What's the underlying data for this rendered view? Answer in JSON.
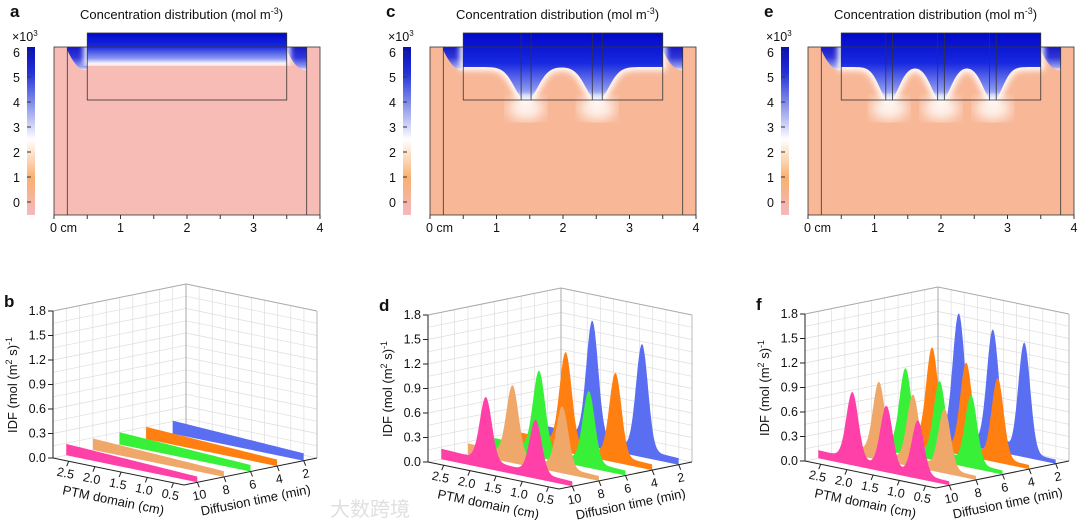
{
  "figure_watermark": "大数跨境",
  "chart_data": [
    {
      "panel": "a",
      "type": "heatmap",
      "title": "Concentration distribution (mol m",
      "title_sup": "-3",
      "title_end": ")",
      "colorbar": {
        "multiplier": "×10",
        "multiplier_sup": "3",
        "ticks": [
          "6",
          "5",
          "4",
          "3",
          "2",
          "1",
          "0"
        ],
        "range": [
          -0.6,
          6.2
        ]
      },
      "xticks": [
        "0 cm",
        "1",
        "2",
        "3",
        "4"
      ],
      "xlim": [
        0,
        4
      ],
      "background": "#f8bcb6"
    },
    {
      "panel": "c",
      "type": "heatmap",
      "title": "Concentration distribution (mol m",
      "title_sup": "-3",
      "title_end": ")",
      "colorbar": {
        "multiplier": "×10",
        "multiplier_sup": "3",
        "ticks": [
          "6",
          "5",
          "4",
          "3",
          "2",
          "1",
          "0"
        ],
        "range": [
          -0.6,
          6.2
        ]
      },
      "xticks": [
        "0 cm",
        "1",
        "2",
        "3",
        "4"
      ],
      "xlim": [
        0,
        4
      ],
      "background": "#f8b898"
    },
    {
      "panel": "e",
      "type": "heatmap",
      "title": "Concentration distribution (mol m",
      "title_sup": "-3",
      "title_end": ")",
      "colorbar": {
        "multiplier": "×10",
        "multiplier_sup": "3",
        "ticks": [
          "6",
          "5",
          "4",
          "3",
          "2",
          "1",
          "0"
        ],
        "range": [
          -0.6,
          6.2
        ]
      },
      "xticks": [
        "0 cm",
        "1",
        "2",
        "3",
        "4"
      ],
      "xlim": [
        0,
        4
      ],
      "background": "#f8b898"
    },
    {
      "panel": "b",
      "type": "area",
      "zlabel": {
        "a": "IDF (mol (m",
        "sup1": "2",
        "b": " s)",
        "sup2": "-1"
      },
      "xlabel": "PTM domain (cm)",
      "ylabel": "Diffusion time (min)",
      "zticks": [
        "0.0",
        "0.3",
        "0.6",
        "0.9",
        "1.2",
        "1.5",
        "1.8"
      ],
      "zlim": [
        0,
        1.8
      ],
      "xticks": [
        "2.5",
        "2.0",
        "1.5",
        "1.0",
        "0.5"
      ],
      "yticks": [
        "10",
        "8",
        "6",
        "4",
        "2"
      ],
      "series": [
        {
          "time": 10,
          "color": "#ff40a8",
          "baseline": [
            0.14,
            0.07
          ],
          "peaks": []
        },
        {
          "time": 8,
          "color": "#f0a86a",
          "baseline": [
            0.14,
            0.07
          ],
          "peaks": []
        },
        {
          "time": 6,
          "color": "#38f038",
          "baseline": [
            0.15,
            0.08
          ],
          "peaks": []
        },
        {
          "time": 4,
          "color": "#ff7f10",
          "baseline": [
            0.15,
            0.08
          ],
          "peaks": []
        },
        {
          "time": 2,
          "color": "#5a6ef2",
          "baseline": [
            0.16,
            0.09
          ],
          "peaks": []
        }
      ]
    },
    {
      "panel": "d",
      "type": "area",
      "zlabel": {
        "a": "IDF (mol (m",
        "sup1": "2",
        "b": " s)",
        "sup2": "-1"
      },
      "xlabel": "PTM domain (cm)",
      "ylabel": "Diffusion time (min)",
      "zticks": [
        "0.0",
        "0.3",
        "0.6",
        "0.9",
        "1.2",
        "1.5",
        "1.8"
      ],
      "zlim": [
        0,
        1.8
      ],
      "xticks": [
        "2.5",
        "2.0",
        "1.5",
        "1.0",
        "0.5"
      ],
      "yticks": [
        "10",
        "8",
        "6",
        "4",
        "2"
      ],
      "series": [
        {
          "time": 10,
          "color": "#ff40a8",
          "baseline": [
            0.13,
            0.06
          ],
          "peaks": [
            {
              "center": 1.95,
              "height": 0.78
            },
            {
              "center": 1.0,
              "height": 0.65
            }
          ]
        },
        {
          "time": 8,
          "color": "#f0a86a",
          "baseline": [
            0.13,
            0.06
          ],
          "peaks": [
            {
              "center": 1.95,
              "height": 0.86
            },
            {
              "center": 1.0,
              "height": 0.75
            }
          ]
        },
        {
          "time": 6,
          "color": "#38f038",
          "baseline": [
            0.13,
            0.06
          ],
          "peaks": [
            {
              "center": 1.95,
              "height": 0.97
            },
            {
              "center": 1.0,
              "height": 0.87
            }
          ]
        },
        {
          "time": 4,
          "color": "#ff7f10",
          "baseline": [
            0.13,
            0.07
          ],
          "peaks": [
            {
              "center": 1.95,
              "height": 1.13
            },
            {
              "center": 1.0,
              "height": 1.02
            }
          ]
        },
        {
          "time": 2,
          "color": "#5a6ef2",
          "baseline": [
            0.14,
            0.08
          ],
          "peaks": [
            {
              "center": 1.95,
              "height": 1.44
            },
            {
              "center": 1.0,
              "height": 1.3
            }
          ]
        }
      ]
    },
    {
      "panel": "f",
      "type": "area",
      "zlabel": {
        "a": "IDF (mol (m",
        "sup1": "2",
        "b": " s)",
        "sup2": "-1"
      },
      "xlabel": "PTM domain (cm)",
      "ylabel": "Diffusion time (min)",
      "zticks": [
        "0.0",
        "0.3",
        "0.6",
        "0.9",
        "1.2",
        "1.5",
        "1.8"
      ],
      "zlim": [
        0,
        1.8
      ],
      "xticks": [
        "2.5",
        "2.0",
        "1.5",
        "1.0",
        "0.5"
      ],
      "yticks": [
        "10",
        "8",
        "6",
        "4",
        "2"
      ],
      "series": [
        {
          "time": 10,
          "color": "#ff40a8",
          "baseline": [
            0.1,
            0.05
          ],
          "peaks": [
            {
              "center": 2.15,
              "height": 0.82
            },
            {
              "center": 1.5,
              "height": 0.75
            },
            {
              "center": 0.9,
              "height": 0.66
            }
          ]
        },
        {
          "time": 8,
          "color": "#f0a86a",
          "baseline": [
            0.1,
            0.05
          ],
          "peaks": [
            {
              "center": 2.15,
              "height": 0.88
            },
            {
              "center": 1.5,
              "height": 0.82
            },
            {
              "center": 0.9,
              "height": 0.74
            }
          ]
        },
        {
          "time": 6,
          "color": "#38f038",
          "baseline": [
            0.1,
            0.05
          ],
          "peaks": [
            {
              "center": 2.15,
              "height": 0.98
            },
            {
              "center": 1.5,
              "height": 0.92
            },
            {
              "center": 0.9,
              "height": 0.84
            }
          ]
        },
        {
          "time": 4,
          "color": "#ff7f10",
          "baseline": [
            0.1,
            0.05
          ],
          "peaks": [
            {
              "center": 2.15,
              "height": 1.17
            },
            {
              "center": 1.5,
              "height": 1.08
            },
            {
              "center": 0.9,
              "height": 0.98
            }
          ]
        },
        {
          "time": 2,
          "color": "#5a6ef2",
          "baseline": [
            0.1,
            0.05
          ],
          "peaks": [
            {
              "center": 2.15,
              "height": 1.52
            },
            {
              "center": 1.5,
              "height": 1.42
            },
            {
              "center": 0.9,
              "height": 1.35
            }
          ]
        }
      ]
    }
  ]
}
